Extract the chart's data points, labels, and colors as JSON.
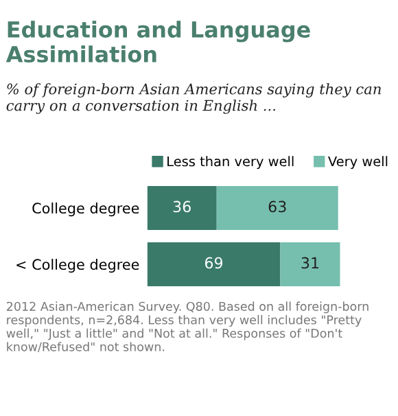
{
  "chart_data": {
    "type": "bar",
    "orientation": "horizontal",
    "title": "Education and Language Assimilation",
    "subtitle": "% of foreign-born Asian Americans saying they can carry on a conversation in English ...",
    "categories": [
      "College degree",
      "< College degree"
    ],
    "series": [
      {
        "name": "Less than very well",
        "color": "#3a7a68",
        "values": [
          36,
          69
        ]
      },
      {
        "name": "Very well",
        "color": "#76bfae",
        "values": [
          63,
          31
        ]
      }
    ],
    "stacked": true,
    "data_labels": true,
    "legend": "top",
    "grid": false,
    "annotations": [
      "2012 Asian-American Survey. Q80. Based on all foreign-born respondents, n=2,684. Less than very well includes \"Pretty well,\" \"Just a little\" and \"Not at all.\" Responses of \"Don't know/Refused\" not shown."
    ]
  }
}
